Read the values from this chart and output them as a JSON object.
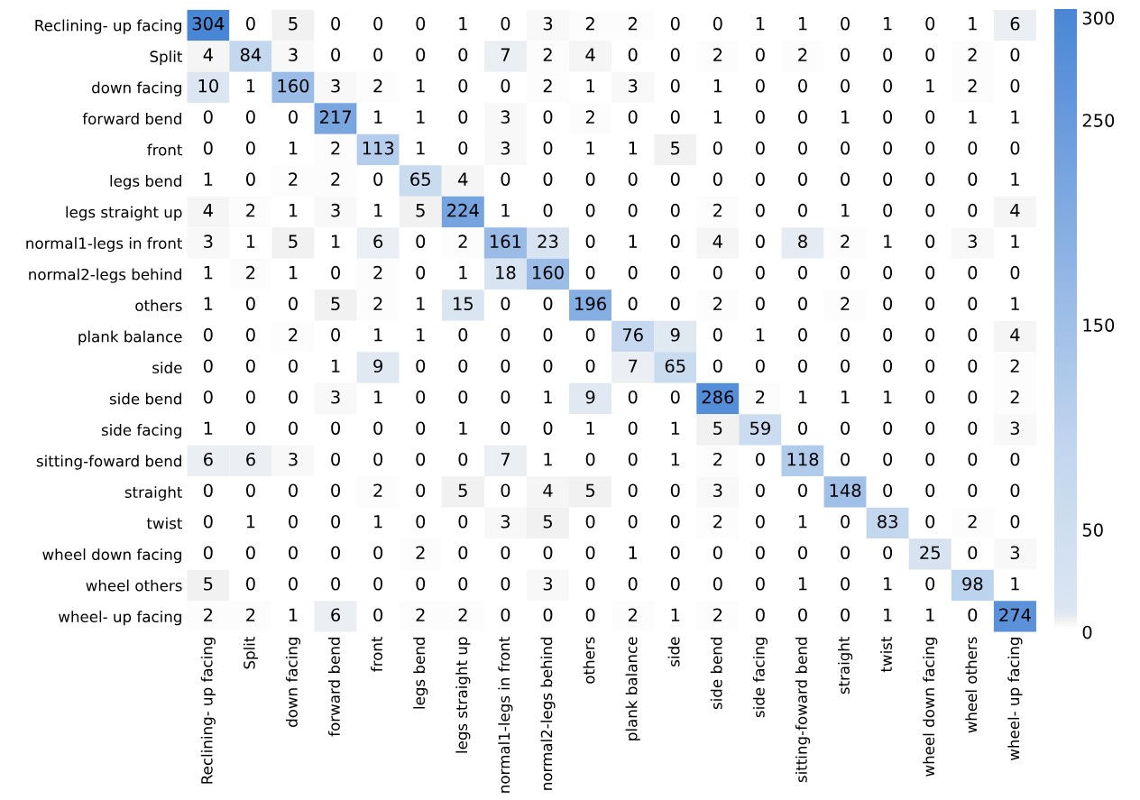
{
  "chart_data": {
    "type": "heatmap",
    "categories": [
      "Reclining- up facing",
      "Split",
      "down facing",
      "forward bend",
      "front",
      "legs bend",
      "legs straight up",
      "normal1-legs in front",
      "normal2-legs behind",
      "others",
      "plank balance",
      "side",
      "side bend",
      "side facing",
      "sitting-foward bend",
      "straight",
      "twist",
      "wheel down facing",
      "wheel others",
      "wheel- up facing"
    ],
    "y_categories": [
      "Reclining- up facing",
      "Split",
      "down facing",
      "forward bend",
      "front",
      "legs bend",
      "legs straight up",
      "normal1-legs in front",
      "normal2-legs behind",
      "others",
      "plank balance",
      "side",
      "side bend",
      "side facing",
      "sitting-foward bend",
      "straight",
      "twist",
      "wheel down facing",
      "wheel others",
      "wheel- up facing"
    ],
    "cells": [
      [
        304,
        0,
        5,
        0,
        0,
        0,
        1,
        0,
        3,
        2,
        2,
        0,
        0,
        1,
        1,
        0,
        1,
        0,
        1,
        6
      ],
      [
        4,
        84,
        3,
        0,
        0,
        0,
        0,
        7,
        2,
        4,
        0,
        0,
        2,
        0,
        2,
        0,
        0,
        0,
        2,
        0
      ],
      [
        10,
        1,
        160,
        3,
        2,
        1,
        0,
        0,
        2,
        1,
        3,
        0,
        1,
        0,
        0,
        0,
        0,
        1,
        2,
        0
      ],
      [
        0,
        0,
        0,
        217,
        1,
        1,
        0,
        3,
        0,
        2,
        0,
        0,
        1,
        0,
        0,
        1,
        0,
        0,
        1,
        1
      ],
      [
        0,
        0,
        1,
        2,
        113,
        1,
        0,
        3,
        0,
        1,
        1,
        5,
        0,
        0,
        0,
        0,
        0,
        0,
        0,
        0
      ],
      [
        1,
        0,
        2,
        2,
        0,
        65,
        4,
        0,
        0,
        0,
        0,
        0,
        0,
        0,
        0,
        0,
        0,
        0,
        0,
        1
      ],
      [
        4,
        2,
        1,
        3,
        1,
        5,
        224,
        1,
        0,
        0,
        0,
        0,
        2,
        0,
        0,
        1,
        0,
        0,
        0,
        4
      ],
      [
        3,
        1,
        5,
        1,
        6,
        0,
        2,
        161,
        23,
        0,
        1,
        0,
        4,
        0,
        8,
        2,
        1,
        0,
        3,
        1
      ],
      [
        1,
        2,
        1,
        0,
        2,
        0,
        1,
        18,
        160,
        0,
        0,
        0,
        0,
        0,
        0,
        0,
        0,
        0,
        0,
        0
      ],
      [
        1,
        0,
        0,
        5,
        2,
        1,
        15,
        0,
        0,
        196,
        0,
        0,
        2,
        0,
        0,
        2,
        0,
        0,
        0,
        1
      ],
      [
        0,
        0,
        2,
        0,
        1,
        1,
        0,
        0,
        0,
        0,
        76,
        9,
        0,
        1,
        0,
        0,
        0,
        0,
        0,
        4
      ],
      [
        0,
        0,
        0,
        1,
        9,
        0,
        0,
        0,
        0,
        0,
        7,
        65,
        0,
        0,
        0,
        0,
        0,
        0,
        0,
        2
      ],
      [
        0,
        0,
        0,
        3,
        1,
        0,
        0,
        0,
        1,
        9,
        0,
        0,
        286,
        2,
        1,
        1,
        1,
        0,
        0,
        2
      ],
      [
        1,
        0,
        0,
        0,
        0,
        0,
        1,
        0,
        0,
        1,
        0,
        1,
        5,
        59,
        0,
        0,
        0,
        0,
        0,
        3
      ],
      [
        6,
        6,
        3,
        0,
        0,
        0,
        0,
        7,
        1,
        0,
        0,
        1,
        2,
        0,
        118,
        0,
        0,
        0,
        0,
        0
      ],
      [
        0,
        0,
        0,
        0,
        2,
        0,
        5,
        0,
        4,
        5,
        0,
        0,
        3,
        0,
        0,
        148,
        0,
        0,
        0,
        0
      ],
      [
        0,
        1,
        0,
        0,
        1,
        0,
        0,
        3,
        5,
        0,
        0,
        0,
        2,
        0,
        1,
        0,
        83,
        0,
        2,
        0
      ],
      [
        0,
        0,
        0,
        0,
        0,
        2,
        0,
        0,
        0,
        0,
        1,
        0,
        0,
        0,
        0,
        0,
        0,
        25,
        0,
        3
      ],
      [
        5,
        0,
        0,
        0,
        0,
        0,
        0,
        0,
        3,
        0,
        0,
        0,
        0,
        0,
        1,
        0,
        1,
        0,
        98,
        1
      ],
      [
        2,
        2,
        1,
        6,
        0,
        2,
        2,
        0,
        0,
        0,
        2,
        1,
        2,
        0,
        0,
        0,
        1,
        1,
        0,
        274
      ]
    ],
    "data_labels": true,
    "clim": [
      0,
      304
    ],
    "cticks": [
      0,
      50,
      150,
      250,
      300
    ]
  }
}
